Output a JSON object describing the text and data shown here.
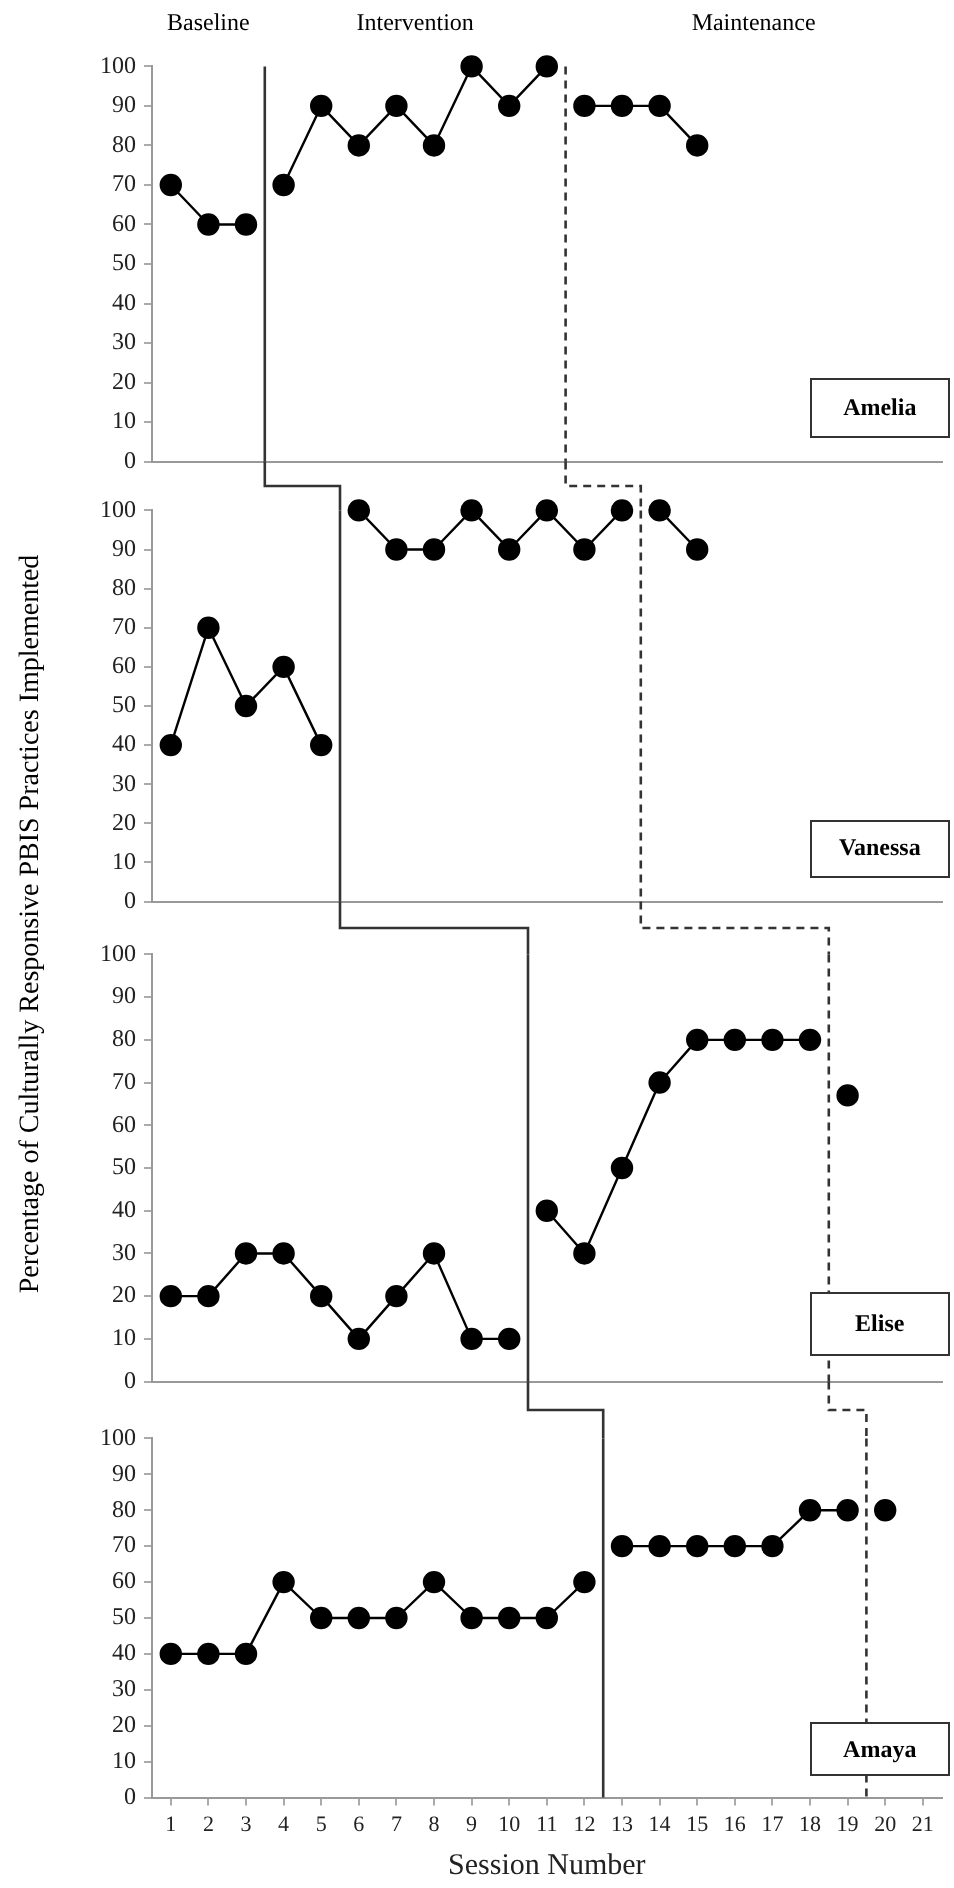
{
  "chart_data": [
    {
      "type": "line",
      "title": "Amelia",
      "ylabel": "Percentage of  Culturally Responsive PBIS Practices Implemented",
      "annotations": [
        "Baseline",
        "Intervention",
        "Maintenance"
      ],
      "xlim": [
        0.5,
        21.5
      ],
      "ylim": [
        0,
        100
      ],
      "yticks": [
        0,
        10,
        20,
        30,
        40,
        50,
        60,
        70,
        80,
        90,
        100
      ],
      "tick_labels": "y",
      "marker": "circle",
      "ref_lines": [
        {
          "axis": "x",
          "value": 3.5,
          "color": "#333333",
          "line_style": "solid"
        },
        {
          "axis": "x",
          "value": 11.5,
          "color": "#333333",
          "line_style": "dashed"
        }
      ],
      "series": [
        {
          "color": "#000000",
          "x": [
            1,
            2,
            3
          ],
          "values": [
            70,
            60,
            60
          ]
        },
        {
          "color": "#000000",
          "x": [
            4,
            5,
            6,
            7,
            8,
            9,
            10,
            11
          ],
          "values": [
            70,
            90,
            80,
            90,
            80,
            100,
            90,
            100
          ]
        },
        {
          "color": "#000000",
          "x": [
            12,
            13,
            14,
            15
          ],
          "values": [
            90,
            90,
            90,
            80
          ]
        }
      ]
    },
    {
      "type": "line",
      "title": "Vanessa",
      "xlim": [
        0.5,
        21.5
      ],
      "ylim": [
        0,
        100
      ],
      "yticks": [
        0,
        10,
        20,
        30,
        40,
        50,
        60,
        70,
        80,
        90,
        100
      ],
      "tick_labels": "y",
      "marker": "circle",
      "ref_lines": [
        {
          "axis": "x",
          "value": 5.5,
          "color": "#333333",
          "line_style": "solid"
        },
        {
          "axis": "x",
          "value": 13.5,
          "color": "#333333",
          "line_style": "dashed"
        }
      ],
      "series": [
        {
          "color": "#000000",
          "x": [
            1,
            2,
            3,
            4,
            5
          ],
          "values": [
            40,
            70,
            50,
            60,
            40
          ]
        },
        {
          "color": "#000000",
          "x": [
            6,
            7,
            8,
            9,
            10,
            11,
            12,
            13
          ],
          "values": [
            100,
            90,
            90,
            100,
            90,
            100,
            90,
            100
          ]
        },
        {
          "color": "#000000",
          "x": [
            14,
            15
          ],
          "values": [
            100,
            90
          ]
        }
      ]
    },
    {
      "type": "line",
      "title": "Elise",
      "xlim": [
        0.5,
        21.5
      ],
      "ylim": [
        0,
        100
      ],
      "yticks": [
        0,
        10,
        20,
        30,
        40,
        50,
        60,
        70,
        80,
        90,
        100
      ],
      "tick_labels": "y",
      "marker": "circle",
      "ref_lines": [
        {
          "axis": "x",
          "value": 10.5,
          "color": "#333333",
          "line_style": "solid"
        },
        {
          "axis": "x",
          "value": 18.5,
          "color": "#333333",
          "line_style": "dashed"
        }
      ],
      "series": [
        {
          "color": "#000000",
          "x": [
            1,
            2,
            3,
            4,
            5,
            6,
            7,
            8,
            9,
            10
          ],
          "values": [
            20,
            20,
            30,
            30,
            20,
            10,
            20,
            30,
            10,
            10
          ]
        },
        {
          "color": "#000000",
          "x": [
            11,
            12,
            13,
            14,
            15,
            16,
            17,
            18
          ],
          "values": [
            40,
            30,
            50,
            70,
            80,
            80,
            80,
            80
          ]
        },
        {
          "color": "#000000",
          "x": [
            19
          ],
          "values": [
            67
          ]
        }
      ]
    },
    {
      "type": "line",
      "title": "Amaya",
      "xlabel": "Session Number",
      "xlim": [
        0.5,
        21.5
      ],
      "xticks": [
        1,
        2,
        3,
        4,
        5,
        6,
        7,
        8,
        9,
        10,
        11,
        12,
        13,
        14,
        15,
        16,
        17,
        18,
        19,
        20,
        21
      ],
      "ylim": [
        0,
        100
      ],
      "yticks": [
        0,
        10,
        20,
        30,
        40,
        50,
        60,
        70,
        80,
        90,
        100
      ],
      "marker": "circle",
      "ref_lines": [
        {
          "axis": "x",
          "value": 12.5,
          "color": "#333333",
          "line_style": "solid"
        },
        {
          "axis": "x",
          "value": 19.5,
          "color": "#333333",
          "line_style": "dashed"
        }
      ],
      "series": [
        {
          "color": "#000000",
          "x": [
            1,
            2,
            3,
            4,
            5,
            6,
            7,
            8,
            9,
            10,
            11,
            12
          ],
          "values": [
            40,
            40,
            40,
            60,
            50,
            50,
            50,
            60,
            50,
            50,
            50,
            60
          ]
        },
        {
          "color": "#000000",
          "x": [
            13,
            14,
            15,
            16,
            17,
            18,
            19
          ],
          "values": [
            70,
            70,
            70,
            70,
            70,
            80,
            80
          ]
        },
        {
          "color": "#000000",
          "x": [
            20
          ],
          "values": [
            80
          ]
        }
      ]
    }
  ]
}
